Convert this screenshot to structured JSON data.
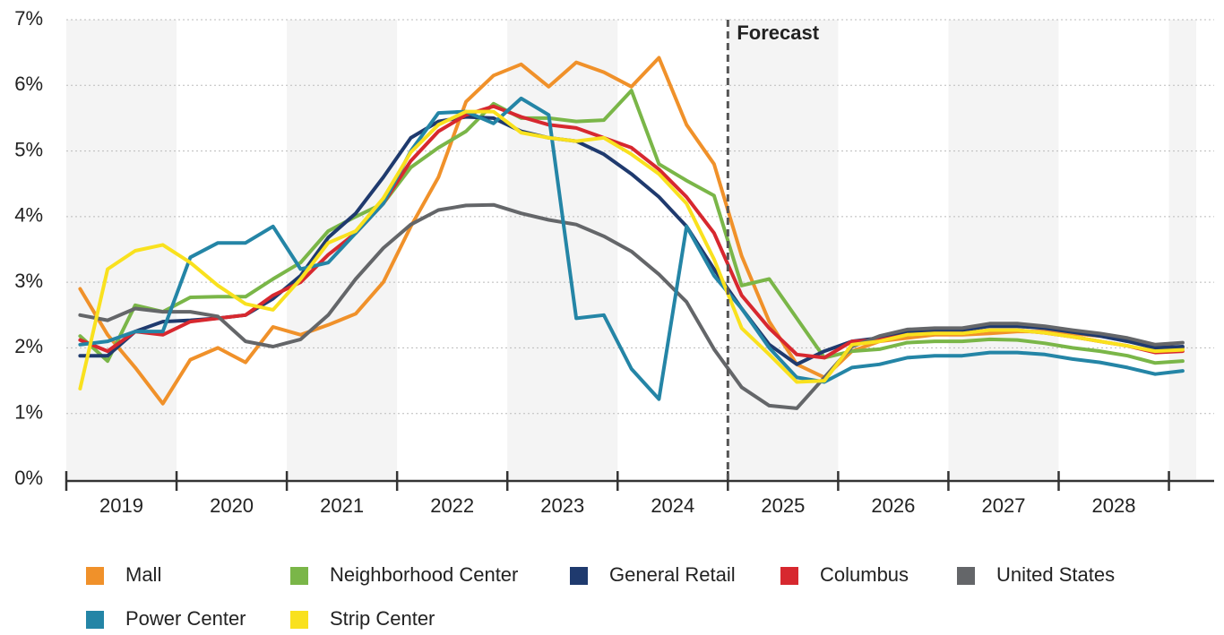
{
  "chart_data": {
    "type": "line",
    "annotations": [
      {
        "text": "Forecast",
        "x": 2025
      }
    ],
    "x": [
      2019.125,
      2019.375,
      2019.625,
      2019.875,
      2020.125,
      2020.375,
      2020.625,
      2020.875,
      2021.125,
      2021.375,
      2021.625,
      2021.875,
      2022.125,
      2022.375,
      2022.625,
      2022.875,
      2023.125,
      2023.375,
      2023.625,
      2023.875,
      2024.125,
      2024.375,
      2024.625,
      2024.875,
      2025.125,
      2025.375,
      2025.625,
      2025.875,
      2026.125,
      2026.375,
      2026.625,
      2026.875,
      2027.125,
      2027.375,
      2027.625,
      2027.875,
      2028.125,
      2028.375,
      2028.625,
      2028.875,
      2029.125
    ],
    "xlim": [
      2019,
      2029.41
    ],
    "xticks": [
      {
        "value": 2019.5,
        "label": "2019"
      },
      {
        "value": 2020.5,
        "label": "2020"
      },
      {
        "value": 2021.5,
        "label": "2021"
      },
      {
        "value": 2022.5,
        "label": "2022"
      },
      {
        "value": 2023.5,
        "label": "2023"
      },
      {
        "value": 2024.5,
        "label": "2024"
      },
      {
        "value": 2025.5,
        "label": "2025"
      },
      {
        "value": 2026.5,
        "label": "2026"
      },
      {
        "value": 2027.5,
        "label": "2027"
      },
      {
        "value": 2028.5,
        "label": "2028"
      }
    ],
    "xtick_marks": [
      2019,
      2020,
      2021,
      2022,
      2023,
      2024,
      2025,
      2026,
      2027,
      2028,
      2029
    ],
    "ylim": [
      0,
      7
    ],
    "yticks": [
      {
        "value": 0,
        "label": "0%"
      },
      {
        "value": 1,
        "label": "1%"
      },
      {
        "value": 2,
        "label": "2%"
      },
      {
        "value": 3,
        "label": "3%"
      },
      {
        "value": 4,
        "label": "4%"
      },
      {
        "value": 5,
        "label": "5%"
      },
      {
        "value": 6,
        "label": "6%"
      },
      {
        "value": 7,
        "label": "7%"
      }
    ],
    "grid": true,
    "series": [
      {
        "name": "Mall",
        "color": "#f0912a",
        "values": [
          2.9,
          2.2,
          1.7,
          1.15,
          1.82,
          2.0,
          1.78,
          2.32,
          2.2,
          2.35,
          2.52,
          3.0,
          3.85,
          4.6,
          5.75,
          6.15,
          6.32,
          5.98,
          6.35,
          6.2,
          5.98,
          6.42,
          5.4,
          4.8,
          3.4,
          2.4,
          1.75,
          1.55,
          1.95,
          2.1,
          2.15,
          2.2,
          2.2,
          2.22,
          2.25,
          2.25,
          2.22,
          2.18,
          2.12,
          2.05,
          2.0
        ]
      },
      {
        "name": "Neighborhood Center",
        "color": "#7ab648",
        "values": [
          2.18,
          1.8,
          2.65,
          2.55,
          2.77,
          2.78,
          2.78,
          3.05,
          3.3,
          3.78,
          4.0,
          4.2,
          4.75,
          5.05,
          5.3,
          5.72,
          5.5,
          5.5,
          5.45,
          5.47,
          5.92,
          4.8,
          4.55,
          4.32,
          2.95,
          3.05,
          2.45,
          1.85,
          1.95,
          1.98,
          2.08,
          2.1,
          2.1,
          2.13,
          2.12,
          2.07,
          2.0,
          1.95,
          1.88,
          1.77,
          1.8
        ]
      },
      {
        "name": "General Retail",
        "color": "#1f3a6e",
        "values": [
          1.88,
          1.88,
          2.25,
          2.4,
          2.42,
          2.45,
          2.5,
          2.75,
          3.1,
          3.68,
          4.05,
          4.6,
          5.2,
          5.45,
          5.52,
          5.5,
          5.3,
          5.2,
          5.15,
          4.95,
          4.65,
          4.3,
          3.85,
          3.2,
          2.6,
          2.05,
          1.75,
          1.95,
          2.1,
          2.15,
          2.25,
          2.27,
          2.27,
          2.33,
          2.33,
          2.3,
          2.24,
          2.18,
          2.1,
          2.0,
          2.02
        ]
      },
      {
        "name": "Columbus",
        "color": "#d7282f",
        "values": [
          2.12,
          1.95,
          2.25,
          2.2,
          2.4,
          2.45,
          2.5,
          2.8,
          3.0,
          3.42,
          3.75,
          4.2,
          4.85,
          5.3,
          5.55,
          5.68,
          5.52,
          5.4,
          5.35,
          5.2,
          5.05,
          4.72,
          4.3,
          3.75,
          2.8,
          2.3,
          1.9,
          1.85,
          2.1,
          2.12,
          2.2,
          2.22,
          2.22,
          2.27,
          2.27,
          2.23,
          2.17,
          2.1,
          2.03,
          1.93,
          1.95
        ]
      },
      {
        "name": "United States",
        "color": "#646669",
        "values": [
          2.5,
          2.42,
          2.6,
          2.55,
          2.55,
          2.48,
          2.1,
          2.02,
          2.13,
          2.5,
          3.05,
          3.52,
          3.88,
          4.1,
          4.17,
          4.18,
          4.05,
          3.95,
          3.88,
          3.7,
          3.47,
          3.12,
          2.7,
          1.98,
          1.4,
          1.12,
          1.08,
          1.55,
          2.02,
          2.18,
          2.28,
          2.3,
          2.3,
          2.37,
          2.37,
          2.33,
          2.27,
          2.22,
          2.15,
          2.05,
          2.08
        ]
      },
      {
        "name": "Power Center",
        "color": "#2485a6",
        "values": [
          2.05,
          2.1,
          2.25,
          2.25,
          3.38,
          3.6,
          3.6,
          3.85,
          3.2,
          3.3,
          3.75,
          4.2,
          5.0,
          5.58,
          5.6,
          5.42,
          5.8,
          5.55,
          2.45,
          2.5,
          1.68,
          1.22,
          3.85,
          3.1,
          2.6,
          2.0,
          1.55,
          1.48,
          1.7,
          1.75,
          1.85,
          1.88,
          1.88,
          1.93,
          1.93,
          1.9,
          1.83,
          1.78,
          1.7,
          1.6,
          1.65
        ]
      },
      {
        "name": "Strip Center",
        "color": "#f9e11e",
        "values": [
          1.38,
          3.2,
          3.48,
          3.57,
          3.3,
          2.95,
          2.67,
          2.58,
          3.05,
          3.6,
          3.78,
          4.28,
          4.98,
          5.4,
          5.6,
          5.6,
          5.28,
          5.2,
          5.15,
          5.2,
          4.95,
          4.65,
          4.2,
          3.35,
          2.3,
          1.9,
          1.48,
          1.5,
          2.05,
          2.1,
          2.2,
          2.22,
          2.22,
          2.27,
          2.27,
          2.23,
          2.17,
          2.1,
          2.03,
          1.95,
          1.97
        ]
      }
    ]
  }
}
